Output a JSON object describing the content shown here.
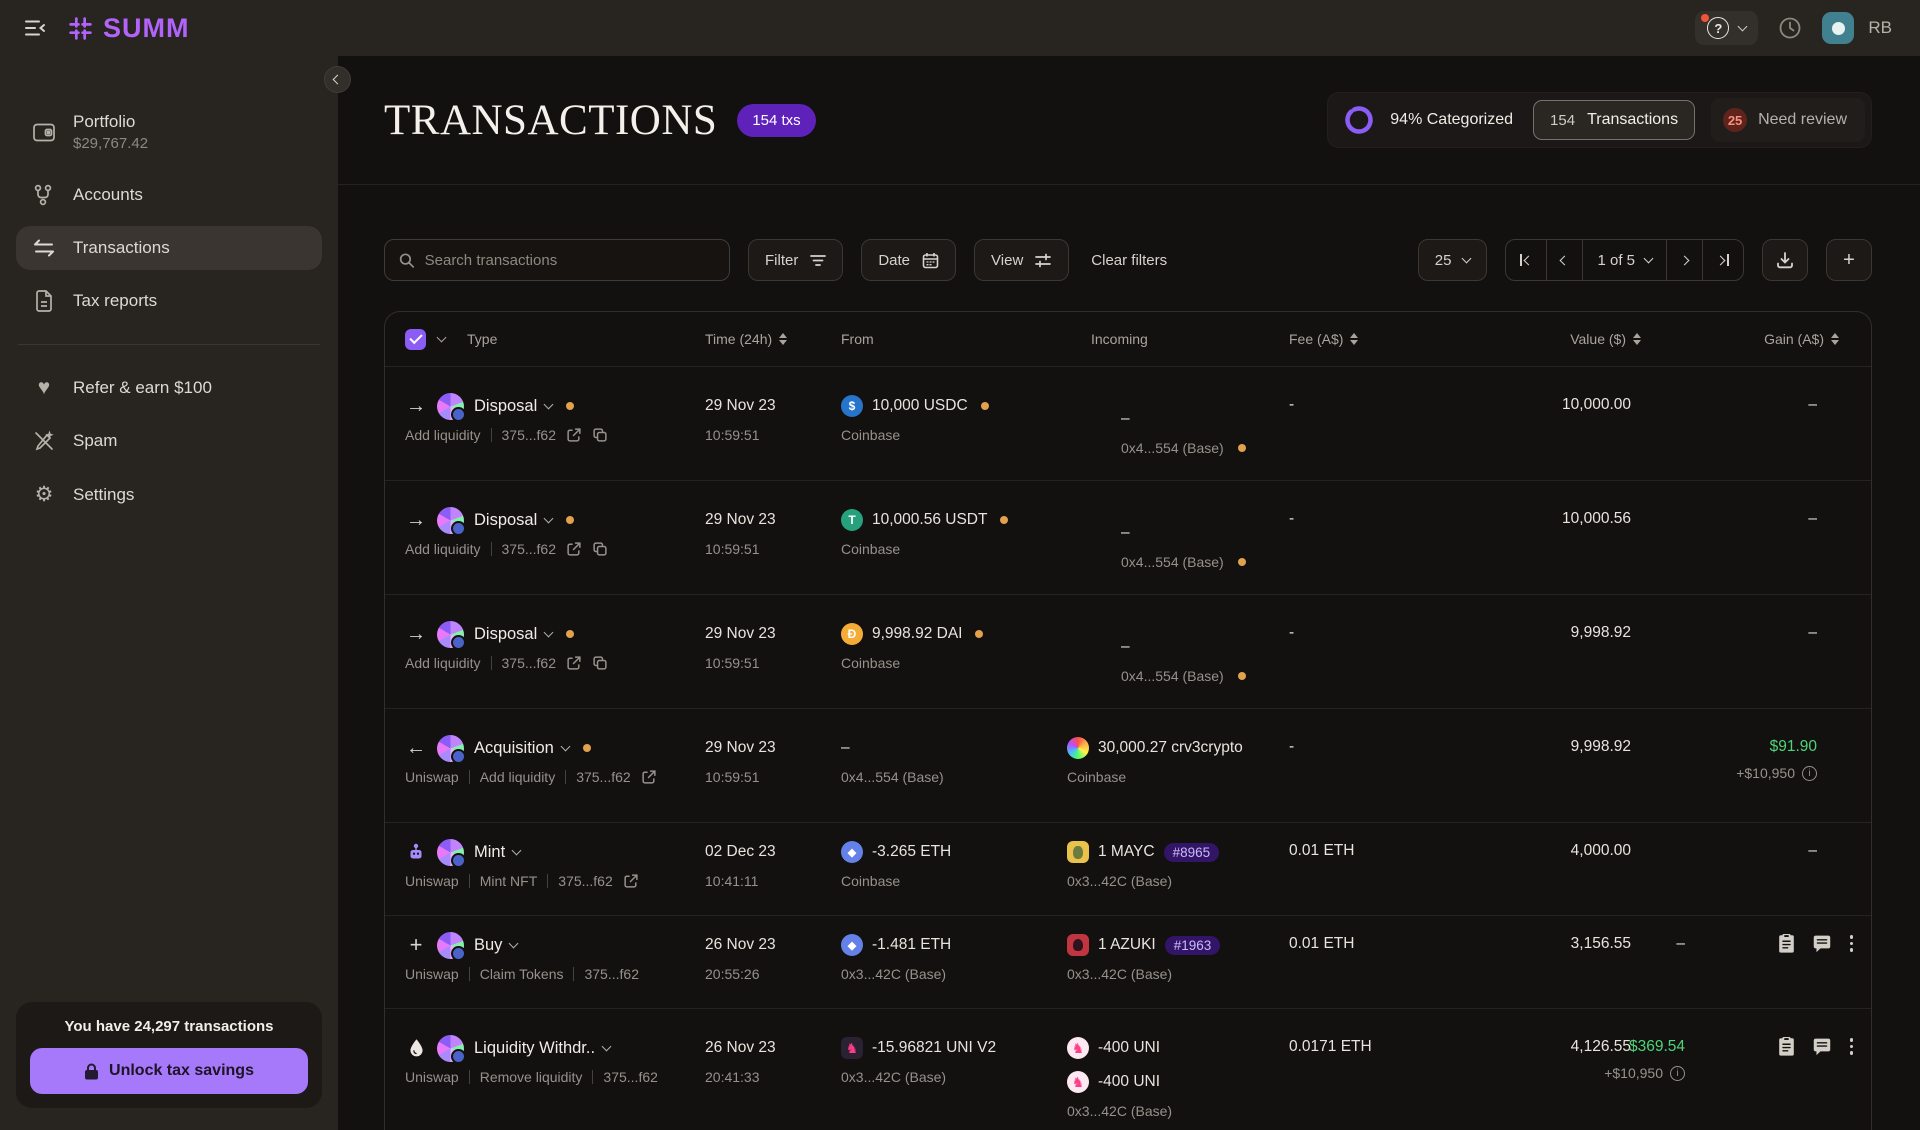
{
  "topbar": {
    "logo": "SUMM",
    "initials": "RB"
  },
  "sidebar": {
    "items": [
      {
        "icon": "wallet",
        "label": "Portfolio",
        "sublabel": "$29,767.42",
        "selected": false
      },
      {
        "icon": "accounts",
        "label": "Accounts",
        "selected": false
      },
      {
        "icon": "swap",
        "label": "Transactions",
        "selected": true
      },
      {
        "icon": "file",
        "label": "Tax reports",
        "selected": false,
        "divider_after": true
      },
      {
        "icon": "heart",
        "label": "Refer & earn $100",
        "selected": false
      },
      {
        "icon": "spam",
        "label": "Spam",
        "selected": false
      },
      {
        "icon": "gear",
        "label": "Settings",
        "selected": false
      }
    ],
    "footer": {
      "message": "You have 24,297 transactions",
      "cta": "Unlock tax savings"
    }
  },
  "header": {
    "title": "TRANSACTIONS",
    "badge": "154 txs",
    "categorized": "94% Categorized",
    "categorized_pct": 94,
    "tx_count": "154",
    "tx_label": "Transactions",
    "review_count": "25",
    "review_label": "Need review"
  },
  "toolbar": {
    "search_placeholder": "Search transactions",
    "filter": "Filter",
    "date": "Date",
    "view": "View",
    "clear": "Clear filters",
    "page_size": "25",
    "page": "1 of 5"
  },
  "table": {
    "columns": [
      "Type",
      "Time (24h)",
      "From",
      "Incoming",
      "Fee (A$)",
      "Value ($)",
      "Gain (A$)"
    ],
    "rows": [
      {
        "icon": "arrow-right",
        "type": "Disposal",
        "type_dot": true,
        "tall": true,
        "sub": [
          "Add liquidity",
          "375...f62"
        ],
        "sub_icons": [
          "external",
          "copy"
        ],
        "date": "29 Nov 23",
        "time": "10:59:51",
        "from": {
          "entries": [
            {
              "token": "usdc",
              "text": "10,000 USDC",
              "dot": true
            }
          ],
          "sub": "Coinbase"
        },
        "incoming": {
          "indent": true,
          "entries": [
            {
              "text": "–"
            }
          ],
          "sub": "0x4...554 (Base)",
          "sub_dot": true
        },
        "fee": "-",
        "value": "10,000.00",
        "gain": {
          "text": "–"
        }
      },
      {
        "icon": "arrow-right",
        "type": "Disposal",
        "type_dot": true,
        "tall": true,
        "sub": [
          "Add liquidity",
          "375...f62"
        ],
        "sub_icons": [
          "external",
          "copy"
        ],
        "date": "29 Nov 23",
        "time": "10:59:51",
        "from": {
          "entries": [
            {
              "token": "usdt",
              "text": "10,000.56 USDT",
              "dot": true
            }
          ],
          "sub": "Coinbase"
        },
        "incoming": {
          "indent": true,
          "entries": [
            {
              "text": "–"
            }
          ],
          "sub": "0x4...554 (Base)",
          "sub_dot": true
        },
        "fee": "-",
        "value": "10,000.56",
        "gain": {
          "text": "–"
        }
      },
      {
        "icon": "arrow-right",
        "type": "Disposal",
        "type_dot": true,
        "tall": true,
        "sub": [
          "Add liquidity",
          "375...f62"
        ],
        "sub_icons": [
          "external",
          "copy"
        ],
        "date": "29 Nov 23",
        "time": "10:59:51",
        "from": {
          "entries": [
            {
              "token": "dai",
              "text": "9,998.92 DAI",
              "dot": true
            }
          ],
          "sub": "Coinbase"
        },
        "incoming": {
          "indent": true,
          "entries": [
            {
              "text": "–"
            }
          ],
          "sub": "0x4...554 (Base)",
          "sub_dot": true
        },
        "fee": "-",
        "value": "9,998.92",
        "gain": {
          "text": "–"
        }
      },
      {
        "icon": "arrow-left",
        "type": "Acquisition",
        "type_dot": true,
        "tall": true,
        "sub": [
          "Uniswap",
          "Add liquidity",
          "375...f62"
        ],
        "sub_icons": [
          "external"
        ],
        "date": "29 Nov 23",
        "time": "10:59:51",
        "from": {
          "entries": [
            {
              "text": "–"
            }
          ],
          "sub": "0x4...554 (Base)"
        },
        "incoming": {
          "entries": [
            {
              "token": "crv",
              "text": "30,000.27 crv3crypto"
            }
          ],
          "sub": "Coinbase"
        },
        "fee": "-",
        "value": "9,998.92",
        "gain": {
          "text": "$91.90",
          "positive": true,
          "sub": "+$10,950"
        }
      },
      {
        "icon": "robot",
        "type": "Mint",
        "type_dot": false,
        "tall": false,
        "sub": [
          "Uniswap",
          "Mint NFT",
          "375...f62"
        ],
        "sub_icons": [
          "external"
        ],
        "date": "02 Dec 23",
        "time": "10:41:11",
        "from": {
          "entries": [
            {
              "token": "eth",
              "text": "-3.265 ETH"
            }
          ],
          "sub": "Coinbase"
        },
        "incoming": {
          "entries": [
            {
              "token": "mayc",
              "text": "1 MAYC",
              "badge": "#8965"
            }
          ],
          "sub": "0x3...42C (Base)"
        },
        "fee": "0.01 ETH",
        "value": "4,000.00",
        "gain": {
          "text": "–"
        }
      },
      {
        "icon": "plus",
        "type": "Buy",
        "type_dot": false,
        "tall": false,
        "actions": true,
        "sub": [
          "Uniswap",
          "Claim Tokens",
          "375...f62"
        ],
        "sub_icons": [],
        "date": "26 Nov 23",
        "time": "20:55:26",
        "from": {
          "entries": [
            {
              "token": "eth",
              "text": "-1.481 ETH"
            }
          ],
          "sub": "0x3...42C (Base)"
        },
        "incoming": {
          "entries": [
            {
              "token": "azuki",
              "text": "1 AZUKI",
              "badge": "#1963"
            }
          ],
          "sub": "0x3...42C (Base)"
        },
        "fee": "0.01 ETH",
        "value": "3,156.55",
        "gain": {
          "text": "–"
        }
      },
      {
        "icon": "droplet",
        "type": "Liquidity Withdr..",
        "type_dot": false,
        "tall": true,
        "actions": true,
        "sub": [
          "Uniswap",
          "Remove liquidity",
          "375...f62"
        ],
        "sub_icons": [],
        "date": "26 Nov 23",
        "time": "20:41:33",
        "from": {
          "entries": [
            {
              "token": "univ2",
              "text": "-15.96821 UNI V2"
            }
          ],
          "sub": "0x3...42C (Base)"
        },
        "incoming": {
          "entries": [
            {
              "token": "uni",
              "text": "-400 UNI"
            },
            {
              "token": "uni",
              "text": "-400 UNI"
            }
          ],
          "sub": "0x3...42C (Base)"
        },
        "fee": "0.0171 ETH",
        "value": "4,126.55",
        "gain": {
          "text": "$369.54",
          "positive": true,
          "sub": "+$10,950"
        }
      }
    ]
  }
}
